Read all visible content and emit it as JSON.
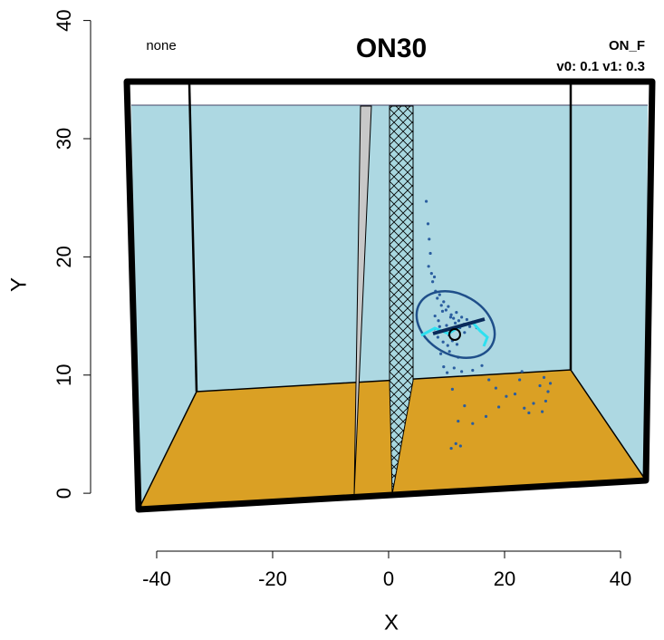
{
  "chart_data": {
    "type": "scatter",
    "title": "ON30",
    "annotations": [
      "none",
      "ON_F",
      "v0: 0.1 v1: 0.3"
    ],
    "x_label": "X",
    "y_label": "Y",
    "xlim": [
      -51.4,
      47.5
    ],
    "ylim": [
      -4.9,
      40.2
    ],
    "xticks": [
      -40,
      -20,
      0,
      20,
      40
    ],
    "yticks": [
      0,
      10,
      20,
      30,
      40
    ],
    "color": "#2a5d9f",
    "x": [
      6.5,
      6.8,
      7.0,
      7.2,
      6.9,
      7.4,
      7.6,
      7.9,
      8.1,
      8.4,
      8.8,
      9.1,
      9.5,
      9.9,
      10.3,
      10.8,
      11.2,
      11.7,
      12.1,
      12.6,
      13.0,
      13.5,
      14.0,
      14.6,
      15.2,
      8.0,
      8.6,
      9.3,
      10.0,
      10.7,
      11.5,
      12.3,
      13.1,
      8.5,
      9.4,
      10.2,
      7.9,
      8.8,
      9.6,
      10.4,
      11.0,
      11.8,
      9.0,
      10.5,
      12.0,
      9.5,
      10.1,
      11.3,
      12.6,
      14.5,
      16.1,
      17.3,
      18.5,
      19.0,
      21.8,
      22.6,
      23.4,
      24.2,
      25.0,
      26.1,
      26.8,
      27.1,
      27.5,
      26.5,
      27.9,
      23.0,
      20.3,
      16.8,
      14.5,
      13.1,
      12.0,
      11.6,
      10.8,
      12.4,
      11.0
    ],
    "y": [
      24.7,
      22.8,
      21.5,
      20.3,
      19.2,
      18.6,
      17.9,
      18.3,
      17.1,
      16.5,
      16.8,
      15.9,
      16.2,
      15.5,
      15.8,
      15.1,
      14.8,
      15.3,
      14.6,
      14.9,
      14.3,
      14.7,
      14.1,
      14.5,
      14.0,
      15.0,
      14.6,
      15.4,
      14.2,
      14.9,
      14.4,
      14.0,
      13.6,
      13.2,
      12.8,
      12.5,
      13.9,
      14.1,
      13.8,
      13.4,
      12.9,
      12.6,
      11.8,
      12.0,
      11.5,
      10.7,
      10.2,
      10.6,
      10.3,
      10.4,
      10.8,
      9.6,
      8.9,
      7.3,
      8.4,
      9.6,
      7.2,
      6.8,
      7.6,
      9.1,
      9.8,
      7.8,
      8.6,
      6.9,
      9.3,
      10.3,
      8.2,
      6.5,
      5.9,
      7.4,
      6.1,
      4.2,
      3.8,
      4.0,
      8.8
    ]
  }
}
